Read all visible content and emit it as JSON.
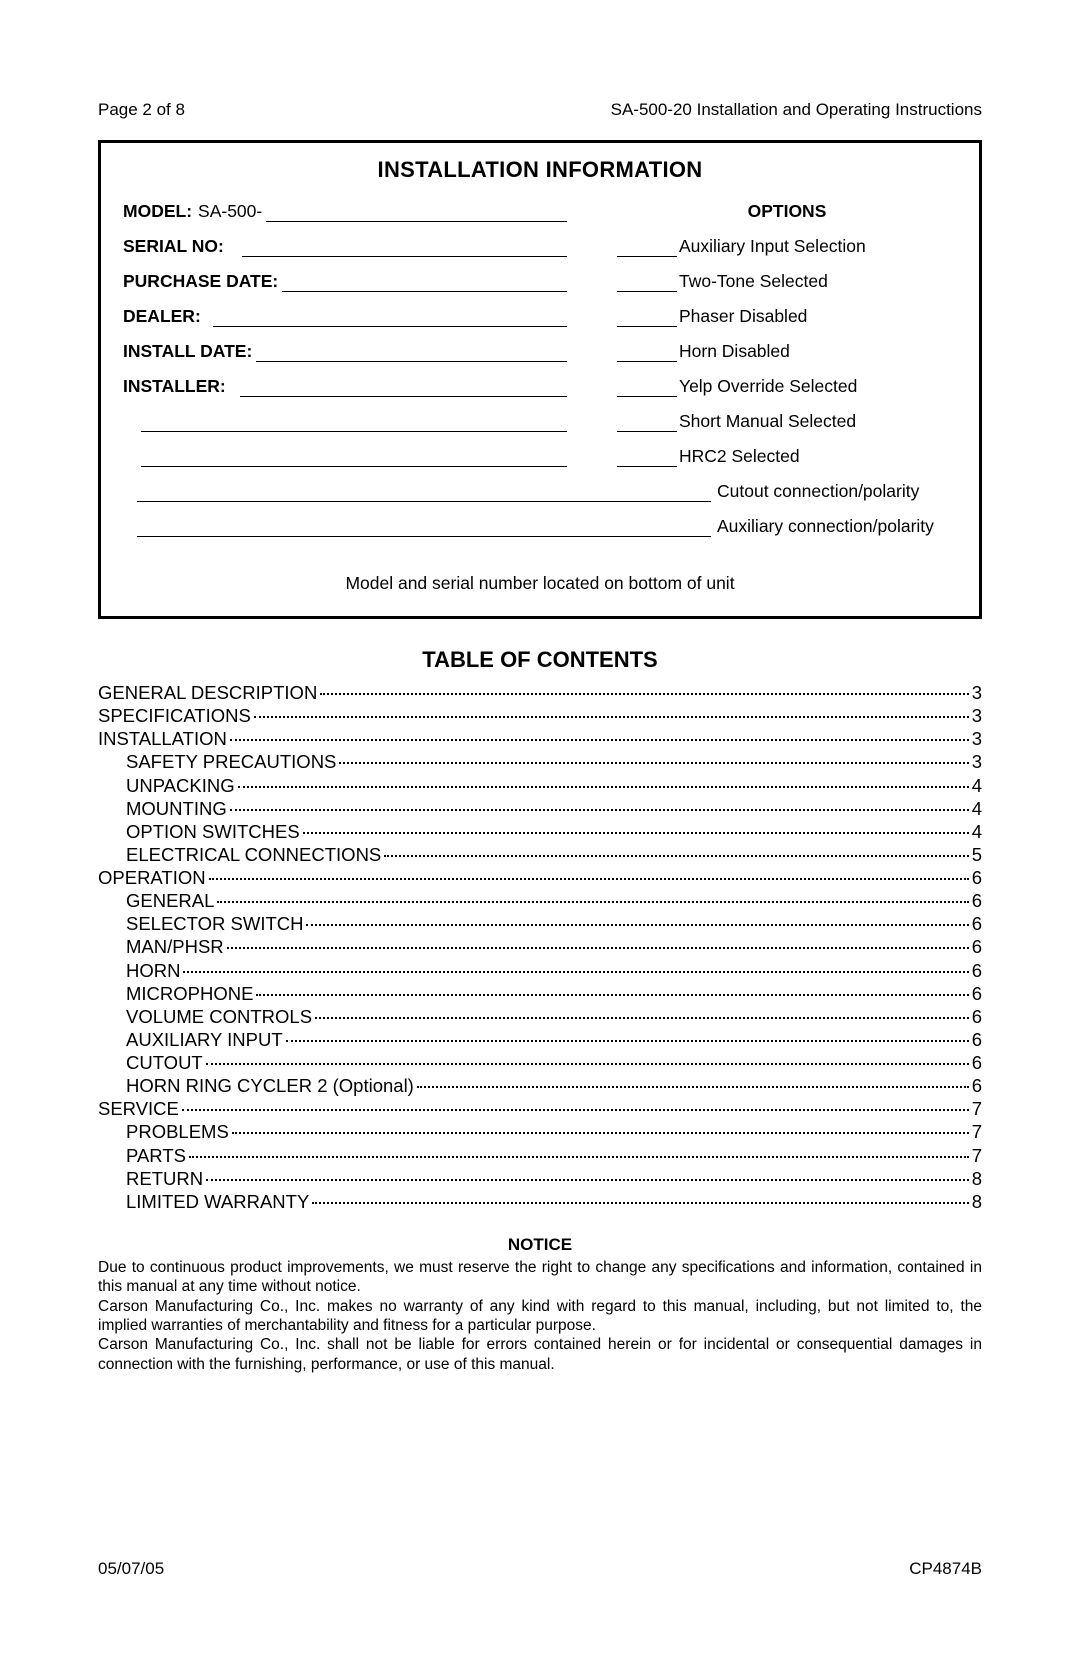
{
  "header": {
    "left": "Page 2 of 8",
    "right": "SA-500-20   Installation and Operating Instructions"
  },
  "install": {
    "title": "INSTALLATION INFORMATION",
    "model_label": "MODEL:",
    "model_value": "SA-500-",
    "serial_label": "SERIAL NO:",
    "purchase_label": "PURCHASE DATE:",
    "dealer_label": "DEALER:",
    "install_date_label": "INSTALL DATE:",
    "installer_label": "INSTALLER:",
    "options_header": "OPTIONS",
    "option_items": [
      "Auxiliary Input Selection",
      "Two-Tone Selected",
      "Phaser Disabled",
      "Horn Disabled",
      "Yelp Override Selected",
      "Short Manual Selected",
      "HRC2 Selected"
    ],
    "fullwidth_options": [
      "Cutout connection/polarity",
      "Auxiliary connection/polarity"
    ],
    "note": "Model and serial number located on bottom of unit"
  },
  "toc": {
    "title": "TABLE OF CONTENTS",
    "entries": [
      {
        "label": "GENERAL DESCRIPTION",
        "page": "3",
        "indent": 0
      },
      {
        "label": "SPECIFICATIONS",
        "page": "3",
        "indent": 0
      },
      {
        "label": "INSTALLATION",
        "page": "3",
        "indent": 0
      },
      {
        "label": "SAFETY PRECAUTIONS",
        "page": "3",
        "indent": 1
      },
      {
        "label": "UNPACKING",
        "page": "4",
        "indent": 1
      },
      {
        "label": "MOUNTING",
        "page": "4",
        "indent": 1
      },
      {
        "label": "OPTION SWITCHES",
        "page": "4",
        "indent": 1
      },
      {
        "label": "ELECTRICAL CONNECTIONS",
        "page": "5",
        "indent": 1
      },
      {
        "label": "OPERATION",
        "page": "6",
        "indent": 0
      },
      {
        "label": "GENERAL",
        "page": "6",
        "indent": 1
      },
      {
        "label": "SELECTOR SWITCH",
        "page": "6",
        "indent": 1
      },
      {
        "label": "MAN/PHSR",
        "page": "6",
        "indent": 1
      },
      {
        "label": "HORN",
        "page": "6",
        "indent": 1
      },
      {
        "label": "MICROPHONE",
        "page": "6",
        "indent": 1
      },
      {
        "label": "VOLUME CONTROLS",
        "page": "6",
        "indent": 1
      },
      {
        "label": "AUXILIARY INPUT",
        "page": "6",
        "indent": 1
      },
      {
        "label": "CUTOUT",
        "page": "6",
        "indent": 1
      },
      {
        "label": "HORN RING CYCLER 2 (Optional)",
        "page": "6",
        "indent": 1
      },
      {
        "label": "SERVICE",
        "page": "7",
        "indent": 0
      },
      {
        "label": "PROBLEMS",
        "page": "7",
        "indent": 1
      },
      {
        "label": "PARTS",
        "page": "7",
        "indent": 1
      },
      {
        "label": "RETURN",
        "page": "8",
        "indent": 1
      },
      {
        "label": "LIMITED WARRANTY",
        "page": "8",
        "indent": 1
      }
    ]
  },
  "notice": {
    "title": "NOTICE",
    "p1": "Due to continuous product improvements, we must reserve the right to change any specifications and information, contained in this manual at any time without notice.",
    "p2": "Carson Manufacturing Co., Inc. makes no warranty of any kind with regard to this manual, including, but not limited to, the implied warranties of merchantability and fitness for a particular purpose.",
    "p3": "Carson Manufacturing Co., Inc. shall not be liable for errors contained herein or for incidental or consequential damages in connection with the furnishing, performance, or use of this manual."
  },
  "footer": {
    "left": "05/07/05",
    "right": "CP4874B"
  }
}
